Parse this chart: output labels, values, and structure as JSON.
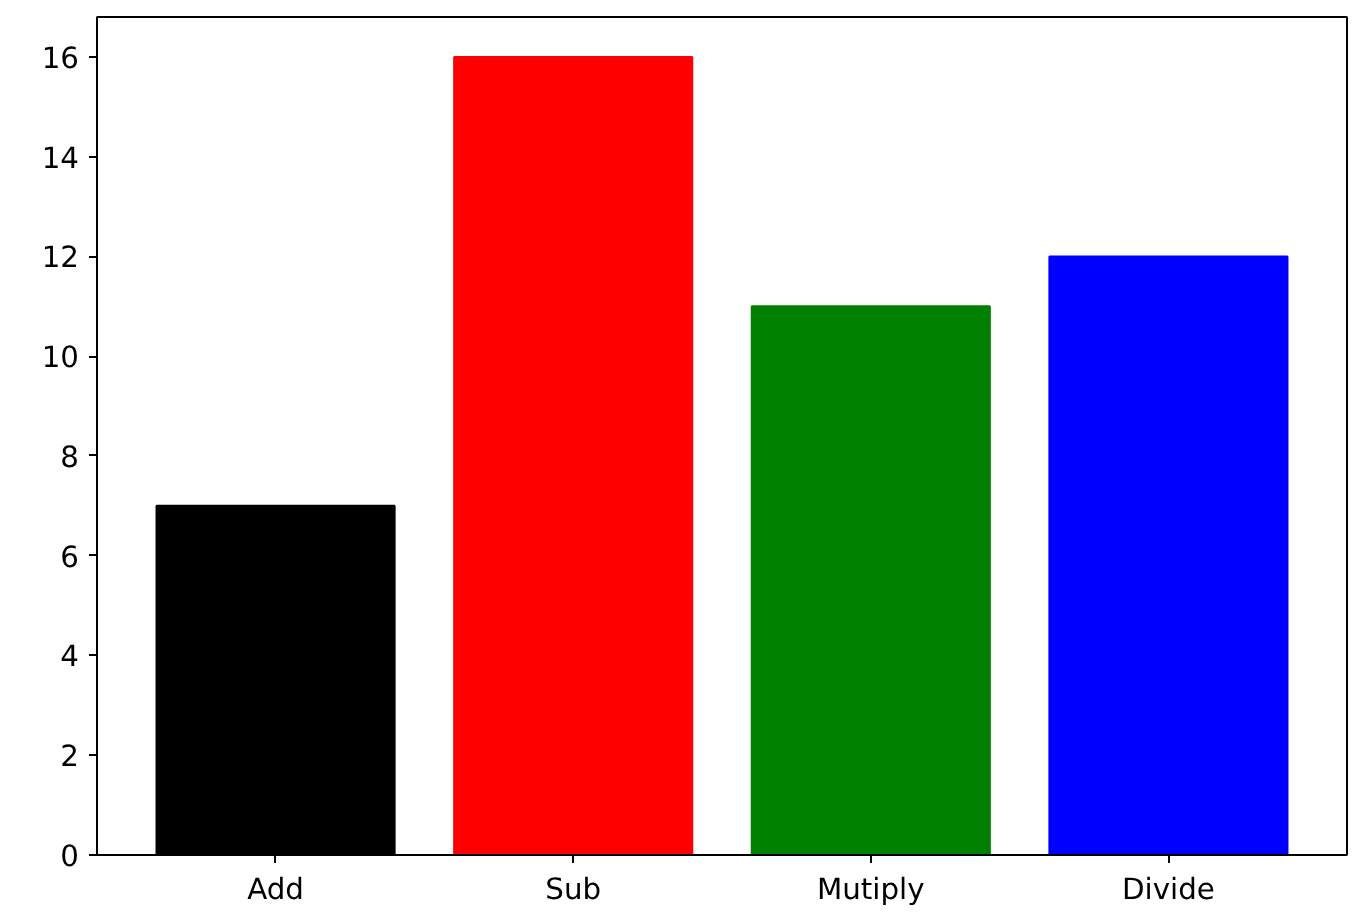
{
  "chart_data": {
    "type": "bar",
    "categories": [
      "Add",
      "Sub",
      "Mutiply",
      "Divide"
    ],
    "values": [
      7,
      16,
      11,
      12
    ],
    "colors": [
      "#000000",
      "#ff0000",
      "#008000",
      "#0000ff"
    ],
    "ylim": [
      0,
      16.8
    ],
    "yticks": [
      0,
      2,
      4,
      6,
      8,
      10,
      12,
      14,
      16
    ],
    "grid": false
  }
}
